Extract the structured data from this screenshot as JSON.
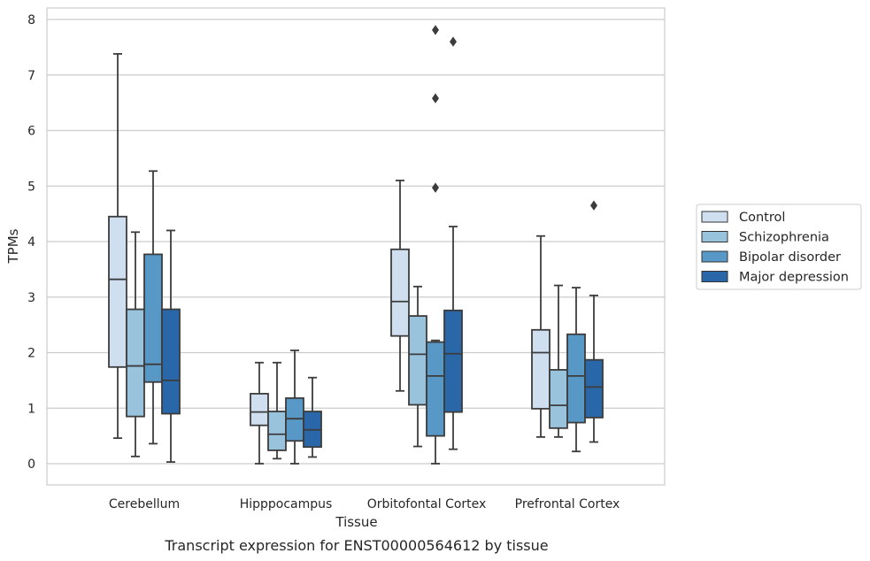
{
  "chart_data": {
    "type": "boxplot",
    "title": "",
    "caption": "Transcript expression for ENST00000564612 by tissue",
    "xlabel": "Tissue",
    "ylabel": "TPMs",
    "ylim": [
      -0.38,
      8.22
    ],
    "yticks": [
      0,
      1,
      2,
      3,
      4,
      5,
      6,
      7,
      8
    ],
    "grid": "horizontal",
    "legend_position": "right",
    "categories": [
      "Cerebellum",
      "Hipppocampus",
      "Orbitofontal Cortex",
      "Prefrontal Cortex"
    ],
    "series": [
      {
        "name": "Control",
        "color": "#cfdff0",
        "boxes": [
          {
            "whislo": 0.46,
            "q1": 1.74,
            "med": 3.32,
            "q3": 4.45,
            "whishi": 7.38,
            "fliers": []
          },
          {
            "whislo": 0.0,
            "q1": 0.69,
            "med": 0.93,
            "q3": 1.26,
            "whishi": 1.82,
            "fliers": []
          },
          {
            "whislo": 1.31,
            "q1": 2.3,
            "med": 2.92,
            "q3": 3.86,
            "whishi": 5.1,
            "fliers": []
          },
          {
            "whislo": 0.48,
            "q1": 0.99,
            "med": 2.0,
            "q3": 2.41,
            "whishi": 4.1,
            "fliers": []
          }
        ]
      },
      {
        "name": "Schizophrenia",
        "color": "#99c2dd",
        "boxes": [
          {
            "whislo": 0.13,
            "q1": 0.85,
            "med": 1.76,
            "q3": 2.78,
            "whishi": 4.17,
            "fliers": []
          },
          {
            "whislo": 0.09,
            "q1": 0.24,
            "med": 0.53,
            "q3": 0.94,
            "whishi": 1.82,
            "fliers": []
          },
          {
            "whislo": 0.31,
            "q1": 1.06,
            "med": 1.97,
            "q3": 2.66,
            "whishi": 3.19,
            "fliers": []
          },
          {
            "whislo": 0.48,
            "q1": 0.64,
            "med": 1.05,
            "q3": 1.69,
            "whishi": 3.21,
            "fliers": []
          }
        ]
      },
      {
        "name": "Bipolar disorder",
        "color": "#5898c6",
        "boxes": [
          {
            "whislo": 0.36,
            "q1": 1.47,
            "med": 1.79,
            "q3": 3.77,
            "whishi": 5.27,
            "fliers": []
          },
          {
            "whislo": 0.0,
            "q1": 0.41,
            "med": 0.81,
            "q3": 1.18,
            "whishi": 2.04,
            "fliers": []
          },
          {
            "whislo": 0.0,
            "q1": 0.5,
            "med": 1.58,
            "q3": 2.19,
            "whishi": 2.22,
            "fliers": [
              4.97,
              6.58,
              7.81
            ]
          },
          {
            "whislo": 0.22,
            "q1": 0.74,
            "med": 1.58,
            "q3": 2.33,
            "whishi": 3.17,
            "fliers": []
          }
        ]
      },
      {
        "name": "Major depression",
        "color": "#2967a9",
        "boxes": [
          {
            "whislo": 0.03,
            "q1": 0.9,
            "med": 1.5,
            "q3": 2.78,
            "whishi": 4.2,
            "fliers": []
          },
          {
            "whislo": 0.12,
            "q1": 0.3,
            "med": 0.61,
            "q3": 0.94,
            "whishi": 1.55,
            "fliers": []
          },
          {
            "whislo": 0.26,
            "q1": 0.93,
            "med": 1.98,
            "q3": 2.76,
            "whishi": 4.27,
            "fliers": [
              7.6
            ]
          },
          {
            "whislo": 0.39,
            "q1": 0.83,
            "med": 1.38,
            "q3": 1.87,
            "whishi": 3.03,
            "fliers": [
              4.65
            ]
          }
        ]
      }
    ]
  },
  "colors": {
    "grid": "#cccccc",
    "frame": "#cccccc",
    "line": "#3c3c3c"
  }
}
